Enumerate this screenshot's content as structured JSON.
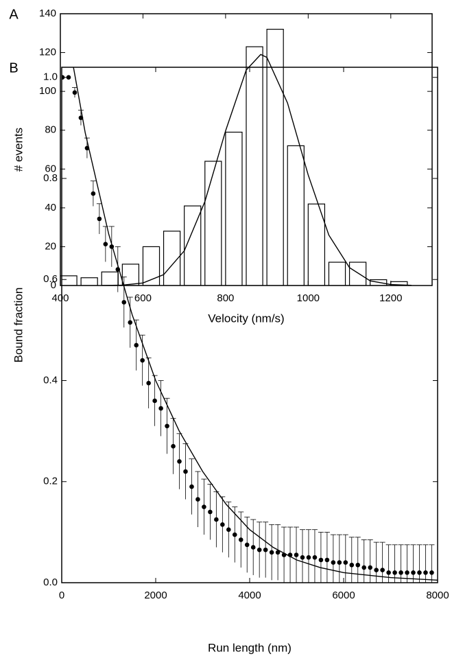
{
  "chart_data": [
    {
      "type": "histogram",
      "annotation": "A",
      "x_label": "Velocity (nm/s)",
      "y_label": "# events",
      "bins": [
        400,
        450,
        500,
        550,
        600,
        650,
        700,
        750,
        800,
        850,
        900,
        950,
        1000,
        1050,
        1100,
        1150,
        1200,
        1250
      ],
      "values": [
        5,
        4,
        7,
        11,
        20,
        28,
        41,
        64,
        79,
        123,
        132,
        72,
        42,
        12,
        12,
        3,
        2
      ],
      "color": "#ffffff",
      "fit": {
        "color": "#000000",
        "x": [
          500,
          550,
          600,
          650,
          700,
          750,
          800,
          850,
          885,
          900,
          950,
          1000,
          1050,
          1100,
          1150,
          1200,
          1250
        ],
        "values": [
          0,
          0.2,
          1.3,
          5.6,
          17.9,
          43.3,
          79.7,
          111,
          119,
          117.5,
          94,
          57,
          26,
          9.2,
          2.4,
          0.5,
          0.1
        ]
      },
      "xlim": [
        400,
        1300
      ],
      "xticks": [
        400,
        600,
        800,
        1000,
        1200
      ],
      "ylim": [
        0,
        140
      ],
      "yticks": [
        0,
        20,
        40,
        60,
        80,
        100,
        120,
        140
      ]
    },
    {
      "type": "scatter",
      "annotation": "B",
      "x_label": "Run length (nm)",
      "y_label": "Bound fraction",
      "x": [
        15,
        146,
        277,
        408,
        539,
        670,
        801,
        932,
        1063,
        1194,
        1325,
        1456,
        1587,
        1718,
        1849,
        1980,
        2111,
        2242,
        2373,
        2504,
        2635,
        2766,
        2897,
        3028,
        3159,
        3290,
        3421,
        3552,
        3683,
        3814,
        3945,
        4076,
        4207,
        4338,
        4469,
        4600,
        4731,
        4862,
        4993,
        5124,
        5255,
        5386,
        5517,
        5648,
        5779,
        5910,
        6041,
        6172,
        6303,
        6434,
        6565,
        6696,
        6827,
        6958,
        7089,
        7220,
        7351,
        7482,
        7613,
        7744,
        7875
      ],
      "values": [
        1.0,
        1.0,
        0.97,
        0.92,
        0.86,
        0.77,
        0.72,
        0.67,
        0.665,
        0.62,
        0.555,
        0.515,
        0.47,
        0.44,
        0.395,
        0.36,
        0.345,
        0.31,
        0.27,
        0.24,
        0.22,
        0.19,
        0.165,
        0.15,
        0.14,
        0.125,
        0.115,
        0.105,
        0.095,
        0.085,
        0.075,
        0.07,
        0.065,
        0.065,
        0.06,
        0.06,
        0.055,
        0.055,
        0.055,
        0.05,
        0.05,
        0.05,
        0.045,
        0.045,
        0.04,
        0.04,
        0.04,
        0.035,
        0.035,
        0.03,
        0.03,
        0.025,
        0.025,
        0.02,
        0.02,
        0.02,
        0.02,
        0.02,
        0.02,
        0.02,
        0.02
      ],
      "errors": [
        0,
        0,
        0.01,
        0.015,
        0.02,
        0.025,
        0.03,
        0.035,
        0.04,
        0.045,
        0.05,
        0.05,
        0.05,
        0.05,
        0.05,
        0.05,
        0.055,
        0.055,
        0.055,
        0.055,
        0.055,
        0.055,
        0.055,
        0.055,
        0.055,
        0.055,
        0.055,
        0.055,
        0.055,
        0.055,
        0.055,
        0.055,
        0.055,
        0.055,
        0.055,
        0.055,
        0.055,
        0.055,
        0.055,
        0.055,
        0.055,
        0.055,
        0.055,
        0.055,
        0.055,
        0.055,
        0.055,
        0.055,
        0.055,
        0.055,
        0.055,
        0.055,
        0.055,
        0.055,
        0.055,
        0.055,
        0.055,
        0.055,
        0.055,
        0.055,
        0.055
      ],
      "color": "#000000",
      "fit": {
        "color": "#000000",
        "x": [
          250,
          500,
          1000,
          1500,
          2000,
          2500,
          3000,
          3500,
          4000,
          4500,
          5000,
          5500,
          6000,
          7000,
          8000
        ],
        "values": [
          1.02,
          0.89,
          0.69,
          0.53,
          0.4,
          0.3,
          0.22,
          0.155,
          0.105,
          0.07,
          0.045,
          0.03,
          0.02,
          0.01,
          0.005
        ]
      },
      "xlim": [
        0,
        8000
      ],
      "xticks": [
        0,
        2000,
        4000,
        6000,
        8000
      ],
      "ylim": [
        0,
        1.02
      ],
      "yticks": [
        {
          "value": 0,
          "label": "0.0"
        },
        0.2,
        0.4,
        0.6,
        0.8,
        {
          "value": 1,
          "label": "1.0"
        }
      ]
    }
  ]
}
